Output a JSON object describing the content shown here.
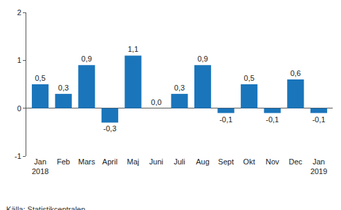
{
  "chart_data": {
    "type": "bar",
    "categories": [
      "Jan 2018",
      "Feb",
      "Mars",
      "April",
      "Maj",
      "Juni",
      "Juli",
      "Aug",
      "Sept",
      "Okt",
      "Nov",
      "Dec",
      "Jan 2019"
    ],
    "values": [
      0.5,
      0.3,
      0.9,
      -0.3,
      1.1,
      0.0,
      0.3,
      0.9,
      -0.1,
      0.5,
      -0.1,
      0.6,
      -0.1
    ],
    "value_labels": [
      "0,5",
      "0,3",
      "0,9",
      "-0,3",
      "1,1",
      "0,0",
      "0,3",
      "0,9",
      "-0,1",
      "0,5",
      "-0,1",
      "0,6",
      "-0,1"
    ],
    "data_labels": true,
    "color": "#1a75bb",
    "ylim": [
      -1,
      2
    ],
    "yticks": [
      -1,
      0,
      1,
      2
    ],
    "grid": false,
    "annotations": [
      "Källa: Statistikcentralen"
    ]
  }
}
